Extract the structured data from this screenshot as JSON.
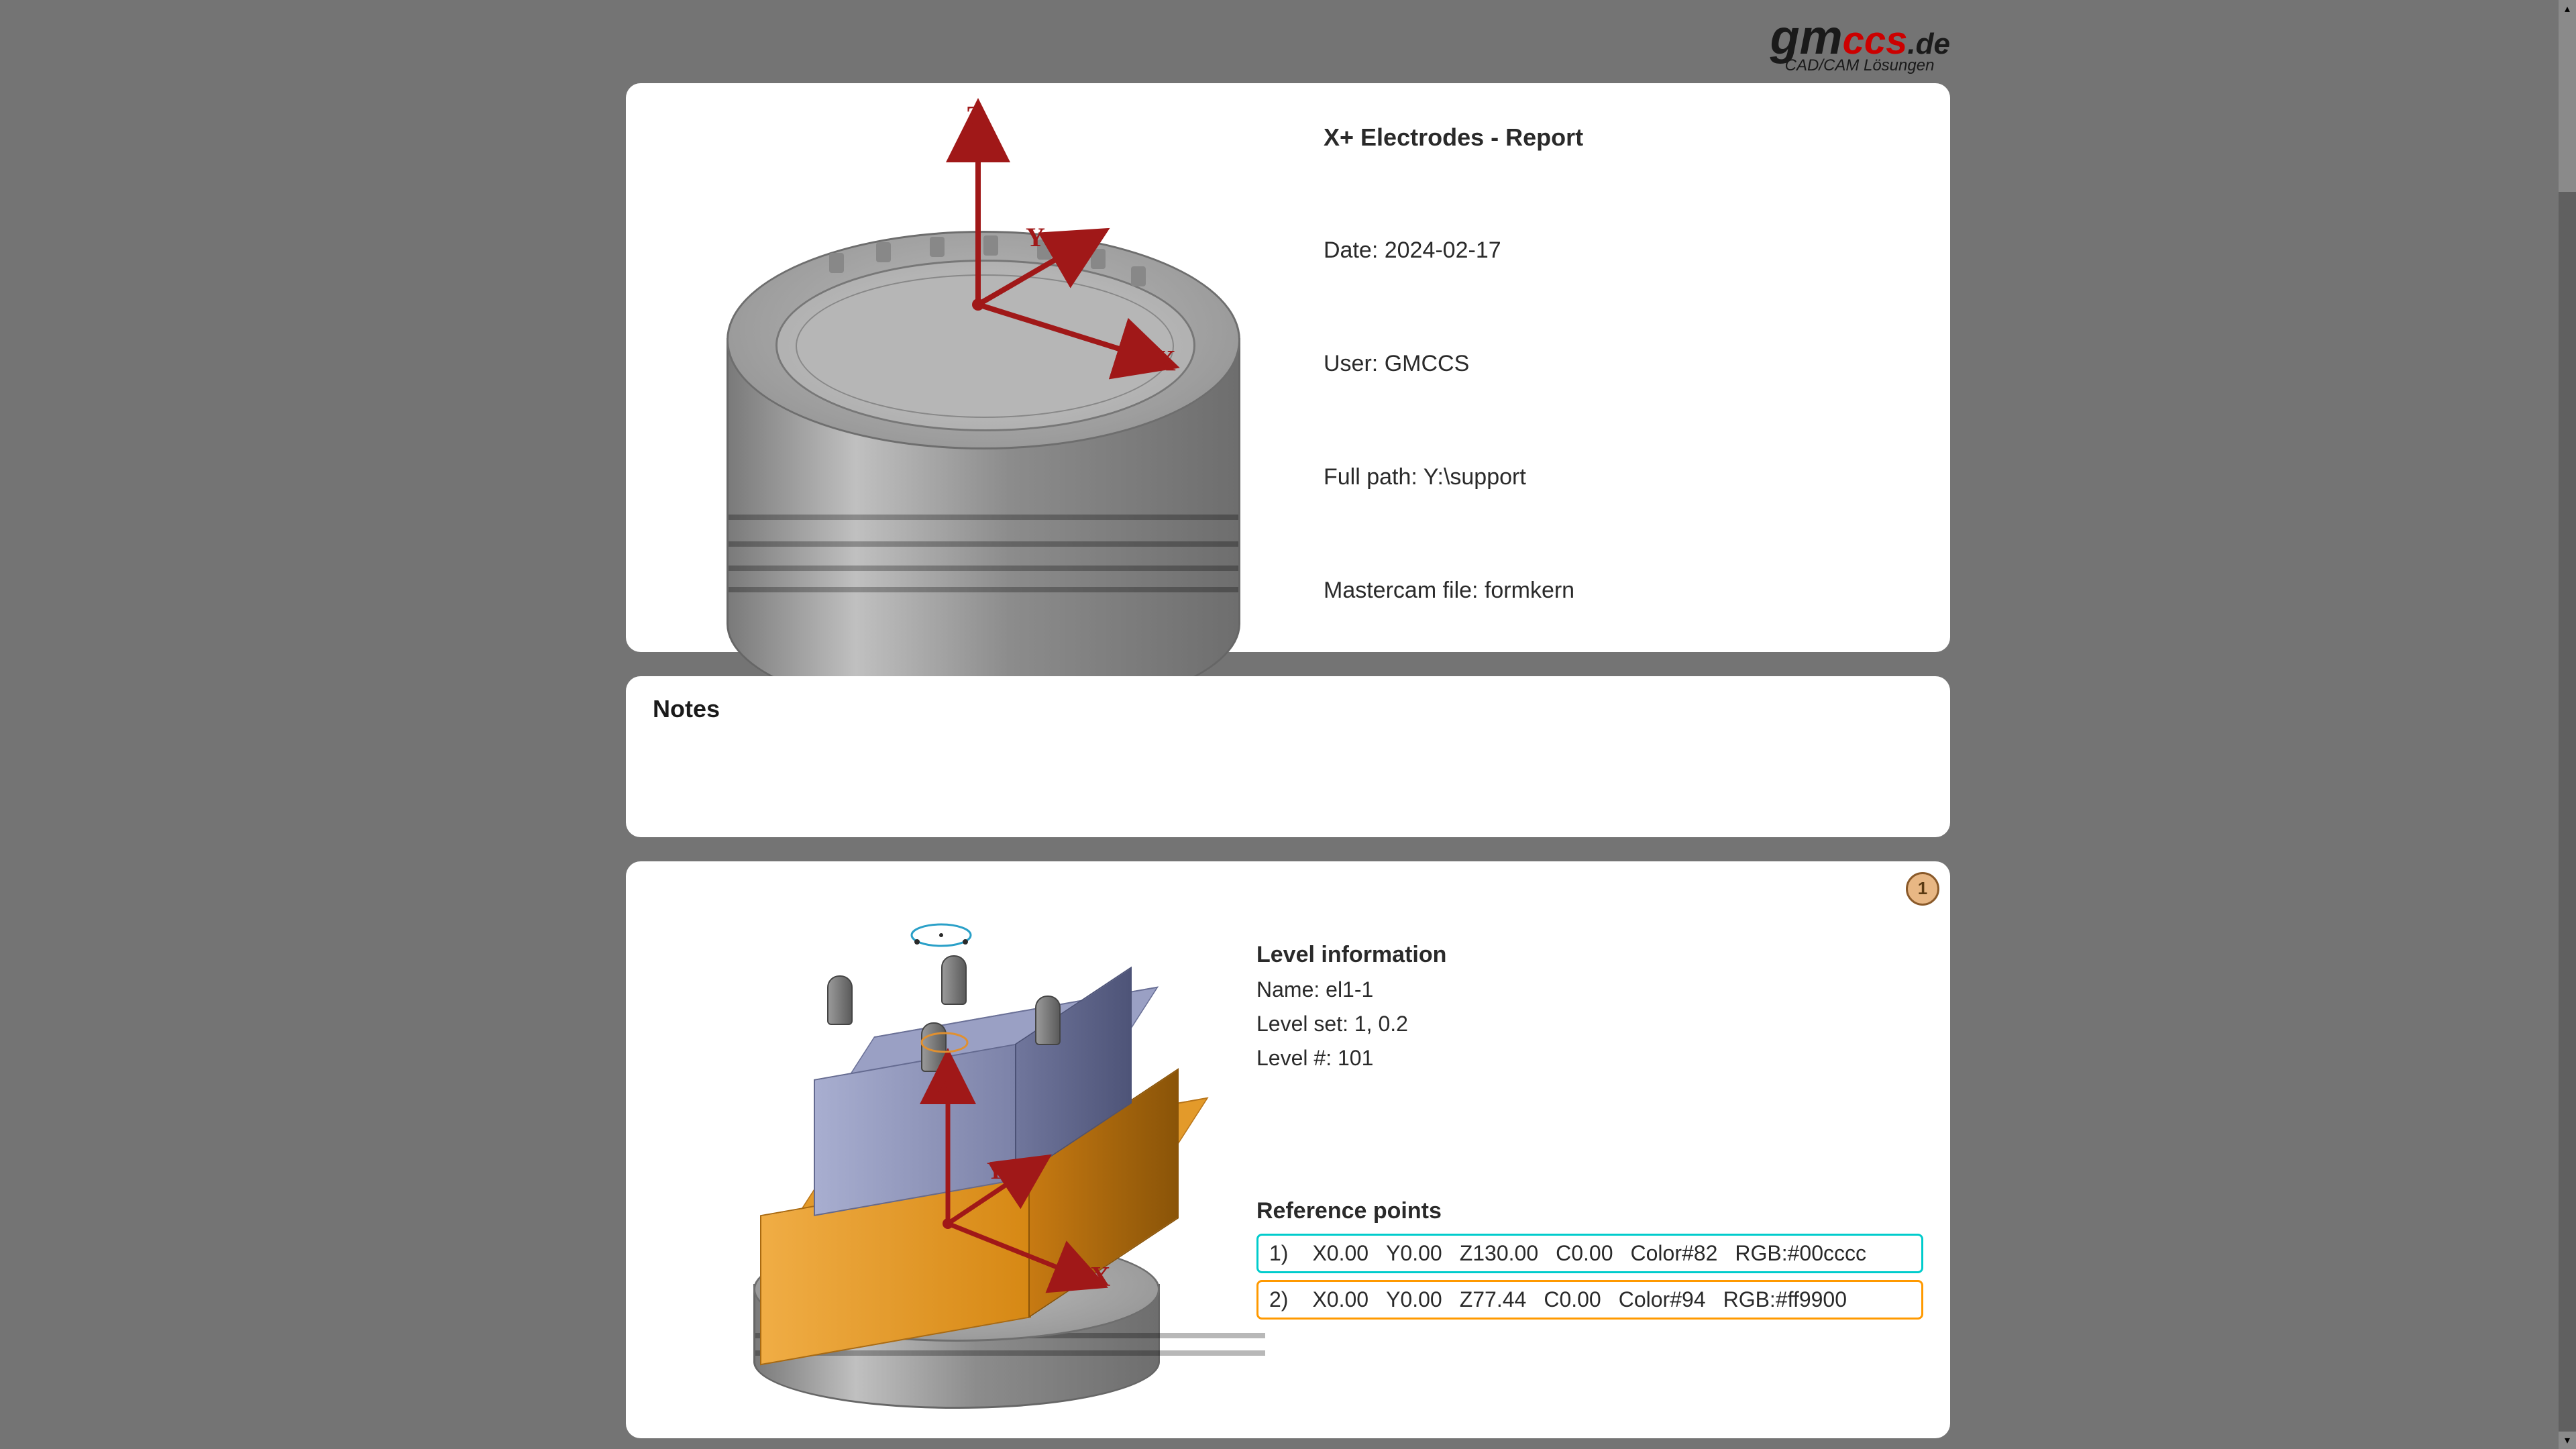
{
  "logo": {
    "gm": "gm",
    "ccs": "ccs",
    "de": ".de",
    "tagline": "CAD/CAM Lösungen"
  },
  "report": {
    "title": "X+ Electrodes - Report",
    "date_label": "Date:",
    "date": "2024-02-17",
    "user_label": "User:",
    "user": "GMCCS",
    "path_label": "Full path:",
    "path": "Y:\\support",
    "file_label": "Mastercam file:",
    "file": "formkern"
  },
  "notes": {
    "title": "Notes"
  },
  "axes": {
    "z": "Z",
    "y": "Y",
    "x": "X"
  },
  "level": {
    "heading": "Level information",
    "name_label": "Name:",
    "name": "el1-1",
    "set_label": "Level set:",
    "set": "1, 0.2",
    "num_label": "Level #:",
    "num": "101",
    "badge": "1"
  },
  "refpoints": {
    "heading": "Reference points",
    "rows": [
      {
        "idx": "1)",
        "x": "X0.00",
        "y": "Y0.00",
        "z": "Z130.00",
        "c": "C0.00",
        "color": "Color#82",
        "rgb": "RGB:#00cccc",
        "border": "#00cccc"
      },
      {
        "idx": "2)",
        "x": "X0.00",
        "y": "Y0.00",
        "z": "Z77.44",
        "c": "C0.00",
        "color": "Color#94",
        "rgb": "RGB:#ff9900",
        "border": "#ff9900"
      }
    ]
  },
  "colors": {
    "page_bg": "#747474",
    "card_bg": "#ffffff",
    "axis": "#a01818",
    "orange": "#e39a2a",
    "blue": "#9aa0c4"
  }
}
